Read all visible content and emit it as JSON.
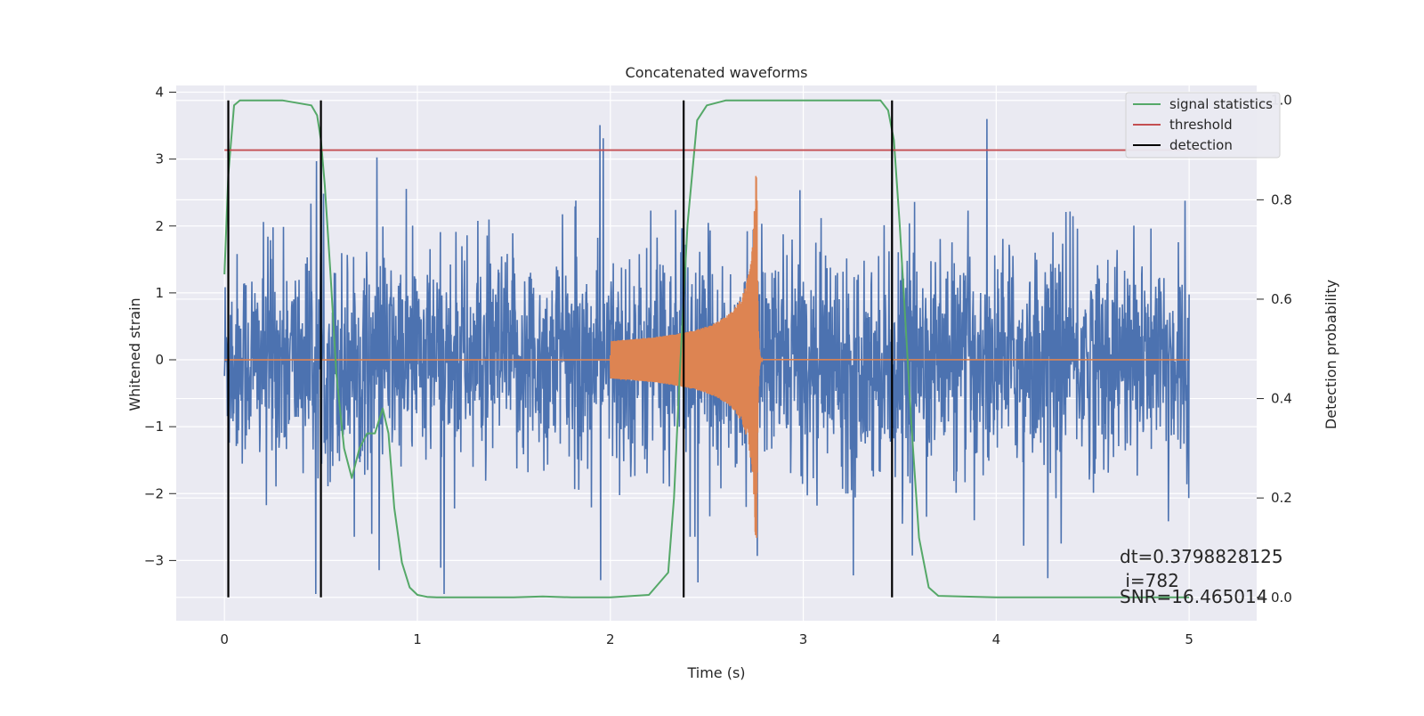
{
  "chart_data": {
    "type": "line",
    "title": "Concatenated waveforms",
    "xlabel": "Time (s)",
    "ylabel": "Whitened strain",
    "y2label": "Detection probability",
    "xlim": [
      -0.25,
      5.35
    ],
    "ylim": [
      -3.9,
      4.1
    ],
    "y2lim": [
      -0.047,
      1.03
    ],
    "xticks": [
      0,
      1,
      2,
      3,
      4,
      5
    ],
    "yticks": [
      -3,
      -2,
      -1,
      0,
      1,
      2,
      3,
      4
    ],
    "y2ticks": [
      0.0,
      0.2,
      0.4,
      0.6,
      0.8,
      1.0
    ],
    "ytick_labels": [
      "−3",
      "−2",
      "−1",
      "0",
      "1",
      "2",
      "3",
      "4"
    ],
    "y2tick_labels": [
      "0.0",
      "0.2",
      "0.4",
      "0.6",
      "0.8",
      "1.0"
    ],
    "grid": true,
    "legend_position": "top-right",
    "legend": [
      "signal statistics",
      "threshold",
      "detection"
    ],
    "series": [
      {
        "name": "signal statistics",
        "axis": "right",
        "color": "#55a868",
        "x": [
          0.0,
          0.02,
          0.05,
          0.08,
          0.15,
          0.3,
          0.45,
          0.48,
          0.5,
          0.52,
          0.55,
          0.58,
          0.62,
          0.66,
          0.7,
          0.74,
          0.78,
          0.82,
          0.85,
          0.88,
          0.92,
          0.96,
          1.0,
          1.05,
          1.1,
          1.5,
          1.65,
          1.8,
          2.0,
          2.2,
          2.3,
          2.33,
          2.36,
          2.4,
          2.45,
          2.5,
          2.6,
          3.0,
          3.4,
          3.44,
          3.47,
          3.5,
          3.53,
          3.56,
          3.6,
          3.65,
          3.7,
          4.0,
          4.5,
          5.0
        ],
        "y": [
          0.65,
          0.85,
          0.99,
          1.0,
          1.0,
          1.0,
          0.99,
          0.97,
          0.92,
          0.83,
          0.65,
          0.45,
          0.3,
          0.24,
          0.3,
          0.33,
          0.33,
          0.38,
          0.33,
          0.18,
          0.07,
          0.02,
          0.005,
          0.001,
          0.0,
          0.0,
          0.002,
          0.0,
          0.0,
          0.005,
          0.05,
          0.2,
          0.45,
          0.75,
          0.96,
          0.99,
          1.0,
          1.0,
          1.0,
          0.98,
          0.92,
          0.75,
          0.55,
          0.35,
          0.12,
          0.02,
          0.003,
          0.0,
          0.0,
          0.0
        ]
      },
      {
        "name": "threshold",
        "axis": "right",
        "color": "#c44e52",
        "x": [
          0.0,
          5.1
        ],
        "y": [
          0.9,
          0.9
        ]
      },
      {
        "name": "detection",
        "axis": "right",
        "color": "#000000",
        "x": [
          0.02,
          0.5,
          2.38,
          3.46
        ],
        "y_range": [
          0.0,
          1.0
        ]
      },
      {
        "name": "",
        "axis": "left",
        "color": "#4c72b0",
        "kind": "whitened noise",
        "x_range": [
          0.0,
          5.0
        ],
        "envelope": 2.6,
        "peaks": [
          3.6,
          -3.5
        ]
      },
      {
        "name": "",
        "axis": "left",
        "color": "#dd8452",
        "kind": "injected chirp",
        "x_range": [
          2.0,
          2.78
        ],
        "peak": 2.6,
        "trough": -2.9
      }
    ],
    "annotations": [
      "dt=0.3798828125",
      " i=782",
      "SNR=16.465014"
    ]
  }
}
